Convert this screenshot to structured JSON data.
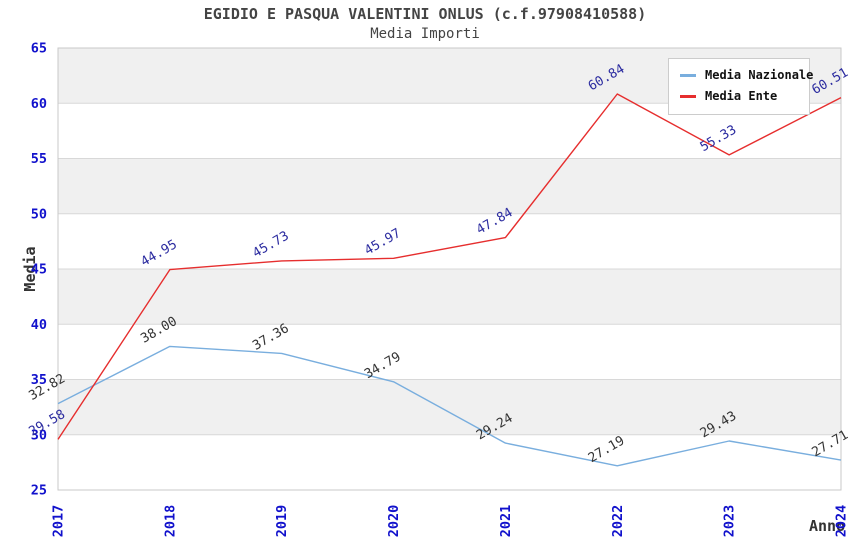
{
  "header": {
    "title": "EGIDIO E PASQUA VALENTINI ONLUS (c.f.97908410588)",
    "subtitle": "Media Importi"
  },
  "chart_data": {
    "type": "line",
    "x": [
      "2017",
      "2018",
      "2019",
      "2020",
      "2021",
      "2022",
      "2023",
      "2024"
    ],
    "xlabel": "Anno",
    "ylabel": "Media",
    "ylim": [
      25,
      65
    ],
    "ytick_step": 5,
    "yticks": [
      25,
      30,
      35,
      40,
      45,
      50,
      55,
      60,
      65
    ],
    "grid": true,
    "legend_position": "top-right",
    "series": [
      {
        "name": "Media Nazionale",
        "color": "#79aede",
        "label_color": "#333333",
        "values": [
          32.82,
          38.0,
          37.36,
          34.79,
          29.24,
          27.19,
          29.43,
          27.71
        ]
      },
      {
        "name": "Media Ente",
        "color": "#e62e2e",
        "label_color": "#2c2ca0",
        "values": [
          29.58,
          44.95,
          45.73,
          45.97,
          47.84,
          60.84,
          55.33,
          60.51
        ]
      }
    ]
  },
  "colors": {
    "tick_text": "#1111cc",
    "band_fill": "#f0f0f0",
    "gridline": "#d8d8d8",
    "plot_border": "#c9c9c9",
    "axis_text": "#333333",
    "title_text": "#444444",
    "legend_border": "#cccccc",
    "legend_bg": "#ffffff"
  }
}
